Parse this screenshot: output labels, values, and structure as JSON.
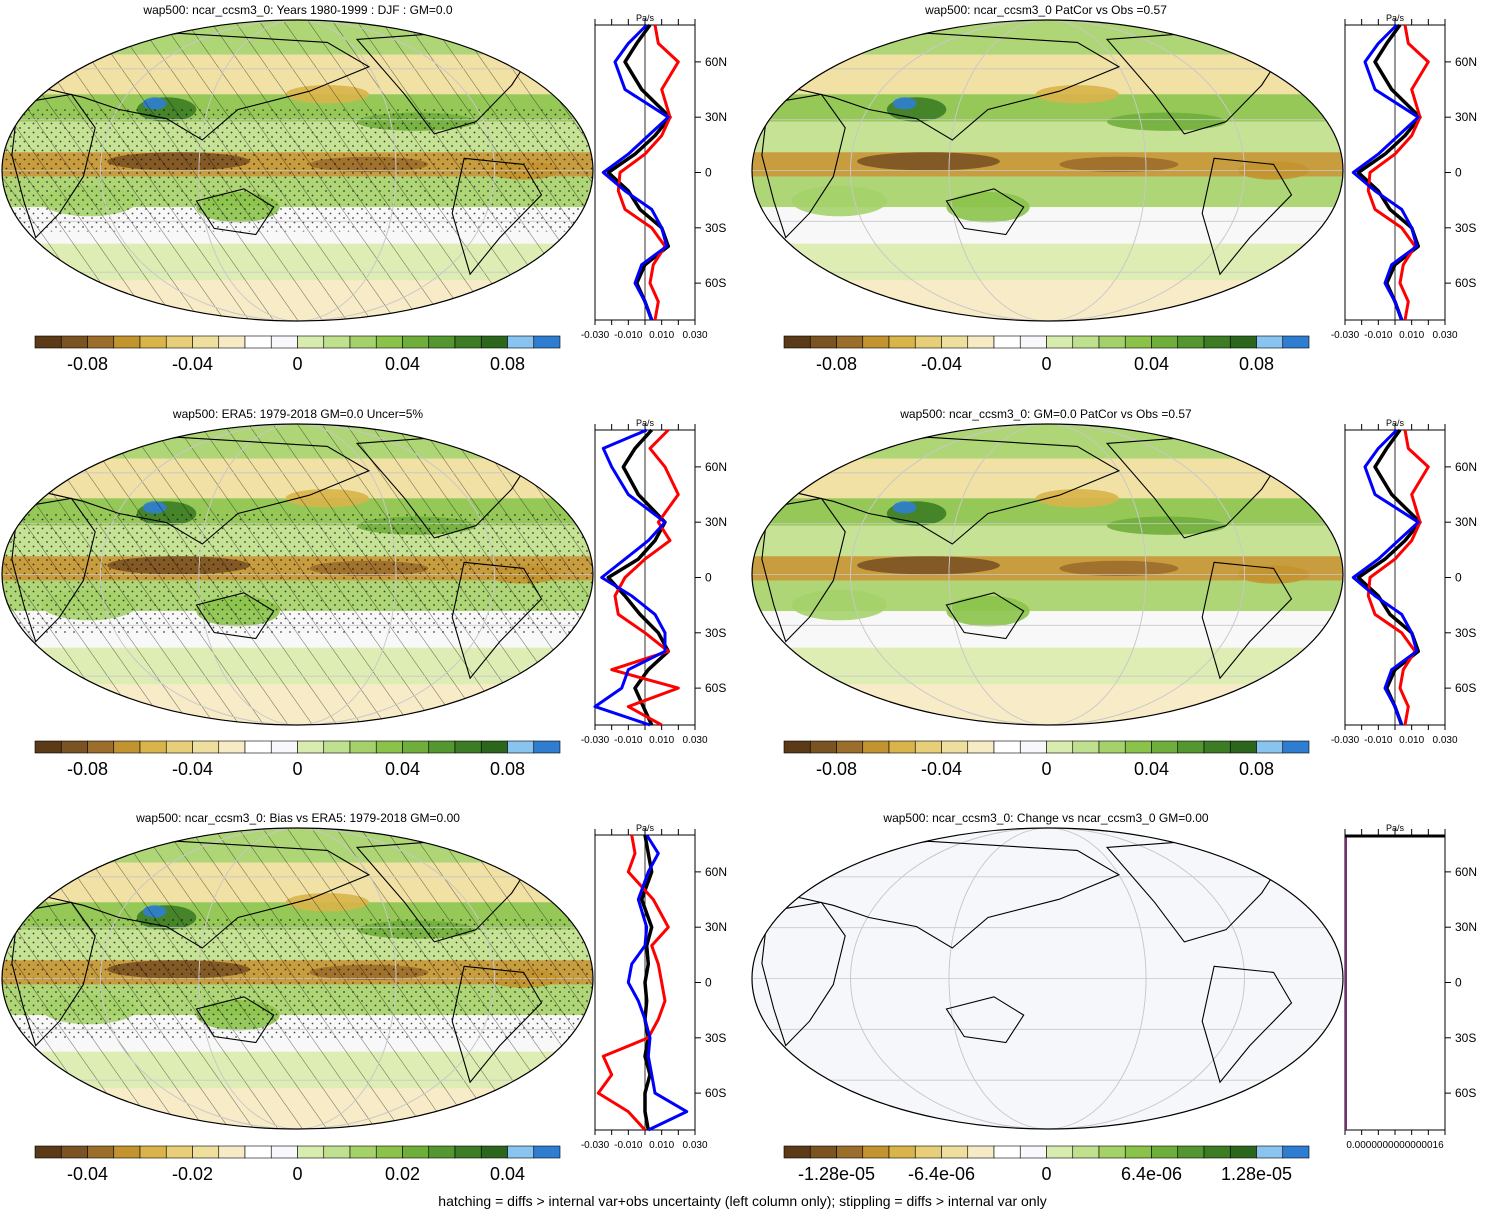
{
  "figure": {
    "footer": "hatching = diffs > internal var+obs uncertainty (left column only); stippling = diffs > internal var only",
    "colors": {
      "model": "#000000",
      "obs_red": "#ff0000",
      "obs_blue": "#0000ff",
      "ocean_blank": "#f5f7fb"
    },
    "colorbar_palette": [
      "#5b3a17",
      "#7b5322",
      "#9c6e2c",
      "#c2942f",
      "#d9b44a",
      "#e7cf7a",
      "#efdf9f",
      "#f6ebc5",
      "#ffffff",
      "#f8f8fc",
      "#d9ecb0",
      "#bfe08e",
      "#a5d16b",
      "#8bc34a",
      "#6fae3b",
      "#54962f",
      "#3c7c25",
      "#2b661c",
      "#89c4f0",
      "#2f7dd0"
    ],
    "profile_yticks": [
      "60N",
      "30N",
      "0",
      "30S",
      "60S"
    ]
  },
  "chart_data": [
    {
      "type": "heatmap",
      "panel": "left-row1",
      "title": "wap500: ncar_ccsm3_0: Years 1980-1999 : DJF : GM=0.0",
      "colorbar_ticks": [
        "-0.08",
        "-0.04",
        "0",
        "0.04",
        "0.08"
      ],
      "colorbar_range": [
        -0.1,
        0.1
      ],
      "profile_unit": "Pa/s",
      "profile_xticks": [
        "-0.030",
        "-0.010",
        "0.010",
        "0.030"
      ],
      "profile_xlim": [
        -0.03,
        0.03
      ],
      "hatched": true,
      "profile_series": [
        {
          "color": "black",
          "lat": [
            80,
            70,
            60,
            45,
            30,
            20,
            10,
            0,
            -10,
            -20,
            -30,
            -40,
            -50,
            -60,
            -70,
            -80
          ],
          "values": [
            0.003,
            -0.005,
            -0.012,
            -0.002,
            0.015,
            0.006,
            -0.006,
            -0.022,
            -0.01,
            -0.003,
            0.01,
            0.014,
            0.0,
            -0.005,
            0.0,
            0.004
          ]
        },
        {
          "color": "red",
          "lat": [
            80,
            70,
            60,
            45,
            30,
            20,
            10,
            0,
            -10,
            -20,
            -30,
            -40,
            -50,
            -60,
            -70,
            -80
          ],
          "values": [
            0.006,
            0.008,
            0.02,
            0.01,
            0.015,
            0.01,
            0.0,
            -0.015,
            -0.016,
            -0.012,
            0.004,
            0.012,
            0.005,
            0.003,
            0.008,
            0.006
          ]
        },
        {
          "color": "blue",
          "lat": [
            80,
            70,
            60,
            45,
            30,
            20,
            10,
            0,
            -10,
            -20,
            -30,
            -40,
            -50,
            -60,
            -70,
            -80
          ],
          "values": [
            0.001,
            -0.01,
            -0.018,
            -0.012,
            0.014,
            0.002,
            -0.01,
            -0.025,
            -0.012,
            0.004,
            0.01,
            0.013,
            -0.002,
            -0.006,
            0.0,
            0.004
          ]
        }
      ]
    },
    {
      "type": "heatmap",
      "panel": "right-row1",
      "title": "wap500: ncar_ccsm3_0 PatCor vs Obs =0.57",
      "colorbar_ticks": [
        "-0.08",
        "-0.04",
        "0",
        "0.04",
        "0.08"
      ],
      "colorbar_range": [
        -0.1,
        0.1
      ],
      "profile_unit": "Pa/s",
      "profile_xticks": [
        "-0.030",
        "-0.010",
        "0.010",
        "0.030"
      ],
      "profile_xlim": [
        -0.03,
        0.03
      ],
      "hatched": false,
      "profile_series": [
        {
          "color": "black",
          "lat": [
            80,
            70,
            60,
            45,
            30,
            20,
            10,
            0,
            -10,
            -20,
            -30,
            -40,
            -50,
            -60,
            -70,
            -80
          ],
          "values": [
            0.003,
            -0.005,
            -0.012,
            -0.002,
            0.015,
            0.006,
            -0.006,
            -0.022,
            -0.01,
            -0.003,
            0.01,
            0.014,
            0.0,
            -0.005,
            0.0,
            0.004
          ]
        },
        {
          "color": "red",
          "lat": [
            80,
            70,
            60,
            45,
            30,
            20,
            10,
            0,
            -10,
            -20,
            -30,
            -40,
            -50,
            -60,
            -70,
            -80
          ],
          "values": [
            0.006,
            0.008,
            0.02,
            0.01,
            0.015,
            0.01,
            0.0,
            -0.015,
            -0.016,
            -0.012,
            0.004,
            0.012,
            0.005,
            0.003,
            0.008,
            0.006
          ]
        },
        {
          "color": "blue",
          "lat": [
            80,
            70,
            60,
            45,
            30,
            20,
            10,
            0,
            -10,
            -20,
            -30,
            -40,
            -50,
            -60,
            -70,
            -80
          ],
          "values": [
            0.001,
            -0.01,
            -0.018,
            -0.012,
            0.014,
            0.002,
            -0.01,
            -0.025,
            -0.012,
            0.004,
            0.01,
            0.013,
            -0.002,
            -0.006,
            0.0,
            0.004
          ]
        }
      ]
    },
    {
      "type": "heatmap",
      "panel": "left-row2",
      "title": "wap500: ERA5: 1979-2018 GM=0.0 Uncer=5%",
      "colorbar_ticks": [
        "-0.08",
        "-0.04",
        "0",
        "0.04",
        "0.08"
      ],
      "colorbar_range": [
        -0.1,
        0.1
      ],
      "profile_unit": "Pa/s",
      "profile_xticks": [
        "-0.030",
        "-0.010",
        "0.010",
        "0.030"
      ],
      "profile_xlim": [
        -0.03,
        0.03
      ],
      "hatched": true,
      "profile_series": [
        {
          "color": "black",
          "lat": [
            80,
            70,
            60,
            45,
            30,
            20,
            10,
            0,
            -10,
            -20,
            -30,
            -40,
            -50,
            -60,
            -70,
            -80
          ],
          "values": [
            0.004,
            -0.006,
            -0.013,
            -0.004,
            0.012,
            0.006,
            -0.004,
            -0.022,
            -0.012,
            -0.003,
            0.008,
            0.014,
            0.002,
            -0.006,
            -0.001,
            0.004
          ]
        },
        {
          "color": "red",
          "lat": [
            80,
            70,
            60,
            45,
            30,
            20,
            10,
            0,
            -10,
            -20,
            -30,
            -40,
            -50,
            -60,
            -70,
            -80
          ],
          "values": [
            0.014,
            0.003,
            0.012,
            0.02,
            0.008,
            0.015,
            0.0,
            -0.012,
            -0.018,
            -0.016,
            0.0,
            0.014,
            -0.02,
            0.02,
            -0.01,
            0.01
          ]
        },
        {
          "color": "blue",
          "lat": [
            80,
            70,
            60,
            45,
            30,
            20,
            10,
            0,
            -10,
            -20,
            -30,
            -40,
            -50,
            -60,
            -70,
            -80
          ],
          "values": [
            0.001,
            -0.025,
            -0.02,
            -0.01,
            0.012,
            0.002,
            -0.012,
            -0.026,
            -0.008,
            0.006,
            0.012,
            0.012,
            -0.01,
            -0.014,
            -0.03,
            0.003
          ]
        }
      ]
    },
    {
      "type": "heatmap",
      "panel": "right-row2",
      "title": "wap500: ncar_ccsm3_0: GM=0.0 PatCor vs Obs =0.57",
      "colorbar_ticks": [
        "-0.08",
        "-0.04",
        "0",
        "0.04",
        "0.08"
      ],
      "colorbar_range": [
        -0.1,
        0.1
      ],
      "profile_unit": "Pa/s",
      "profile_xticks": [
        "-0.030",
        "-0.010",
        "0.010",
        "0.030"
      ],
      "profile_xlim": [
        -0.03,
        0.03
      ],
      "hatched": false,
      "profile_series": [
        {
          "color": "black",
          "lat": [
            80,
            70,
            60,
            45,
            30,
            20,
            10,
            0,
            -10,
            -20,
            -30,
            -40,
            -50,
            -60,
            -70,
            -80
          ],
          "values": [
            0.003,
            -0.005,
            -0.012,
            -0.002,
            0.015,
            0.006,
            -0.006,
            -0.022,
            -0.01,
            -0.003,
            0.01,
            0.014,
            0.0,
            -0.005,
            0.0,
            0.004
          ]
        },
        {
          "color": "red",
          "lat": [
            80,
            70,
            60,
            45,
            30,
            20,
            10,
            0,
            -10,
            -20,
            -30,
            -40,
            -50,
            -60,
            -70,
            -80
          ],
          "values": [
            0.006,
            0.008,
            0.02,
            0.01,
            0.015,
            0.01,
            0.0,
            -0.015,
            -0.016,
            -0.012,
            0.004,
            0.012,
            0.005,
            0.003,
            0.008,
            0.006
          ]
        },
        {
          "color": "blue",
          "lat": [
            80,
            70,
            60,
            45,
            30,
            20,
            10,
            0,
            -10,
            -20,
            -30,
            -40,
            -50,
            -60,
            -70,
            -80
          ],
          "values": [
            0.001,
            -0.01,
            -0.018,
            -0.012,
            0.014,
            0.002,
            -0.01,
            -0.025,
            -0.012,
            0.004,
            0.01,
            0.013,
            -0.002,
            -0.006,
            0.0,
            0.004
          ]
        }
      ]
    },
    {
      "type": "heatmap",
      "panel": "left-row3",
      "title": "wap500: ncar_ccsm3_0: Bias vs ERA5: 1979-2018 GM=0.00",
      "colorbar_ticks": [
        "-0.04",
        "-0.02",
        "0",
        "0.02",
        "0.04"
      ],
      "colorbar_range": [
        -0.05,
        0.05
      ],
      "profile_unit": "Pa/s",
      "profile_xticks": [
        "-0.030",
        "-0.010",
        "0.010",
        "0.030"
      ],
      "profile_xlim": [
        -0.03,
        0.03
      ],
      "hatched": true,
      "profile_series": [
        {
          "color": "black",
          "lat": [
            80,
            70,
            60,
            45,
            30,
            20,
            10,
            0,
            -10,
            -20,
            -30,
            -40,
            -50,
            -60,
            -70,
            -80
          ],
          "values": [
            0.0,
            0.002,
            0.004,
            -0.002,
            0.004,
            0.001,
            0.002,
            0.0,
            0.001,
            0.0,
            0.002,
            0.0,
            0.003,
            0.0,
            0.0,
            0.002
          ]
        },
        {
          "color": "red",
          "lat": [
            80,
            70,
            60,
            45,
            30,
            20,
            10,
            0,
            -10,
            -20,
            -30,
            -40,
            -50,
            -60,
            -70,
            -80
          ],
          "values": [
            -0.008,
            -0.006,
            -0.01,
            0.005,
            0.014,
            0.004,
            0.008,
            0.01,
            0.012,
            0.008,
            0.002,
            -0.025,
            -0.02,
            -0.028,
            -0.01,
            0.0
          ]
        },
        {
          "color": "blue",
          "lat": [
            80,
            70,
            60,
            45,
            30,
            20,
            10,
            0,
            -10,
            -20,
            -30,
            -40,
            -50,
            -60,
            -70,
            -80
          ],
          "values": [
            0.001,
            0.008,
            0.002,
            -0.004,
            0.001,
            0.0,
            -0.008,
            -0.01,
            -0.004,
            0.0,
            0.003,
            0.002,
            0.004,
            0.006,
            0.025,
            0.002
          ]
        }
      ]
    },
    {
      "type": "heatmap",
      "panel": "right-row3",
      "title": "wap500: ncar_ccsm3_0: Change vs ncar_ccsm3_0 GM=0.00",
      "colorbar_ticks": [
        "-1.28e-05",
        "-6.4e-06",
        "0",
        "6.4e-06",
        "1.28e-05"
      ],
      "colorbar_range": [
        -1.6e-05,
        1.6e-05
      ],
      "profile_unit": "Pa/s",
      "profile_xticks": [
        "0.0000000000000016"
      ],
      "profile_xlim": [
        0,
        1
      ],
      "hatched": false,
      "profile_series": []
    }
  ]
}
